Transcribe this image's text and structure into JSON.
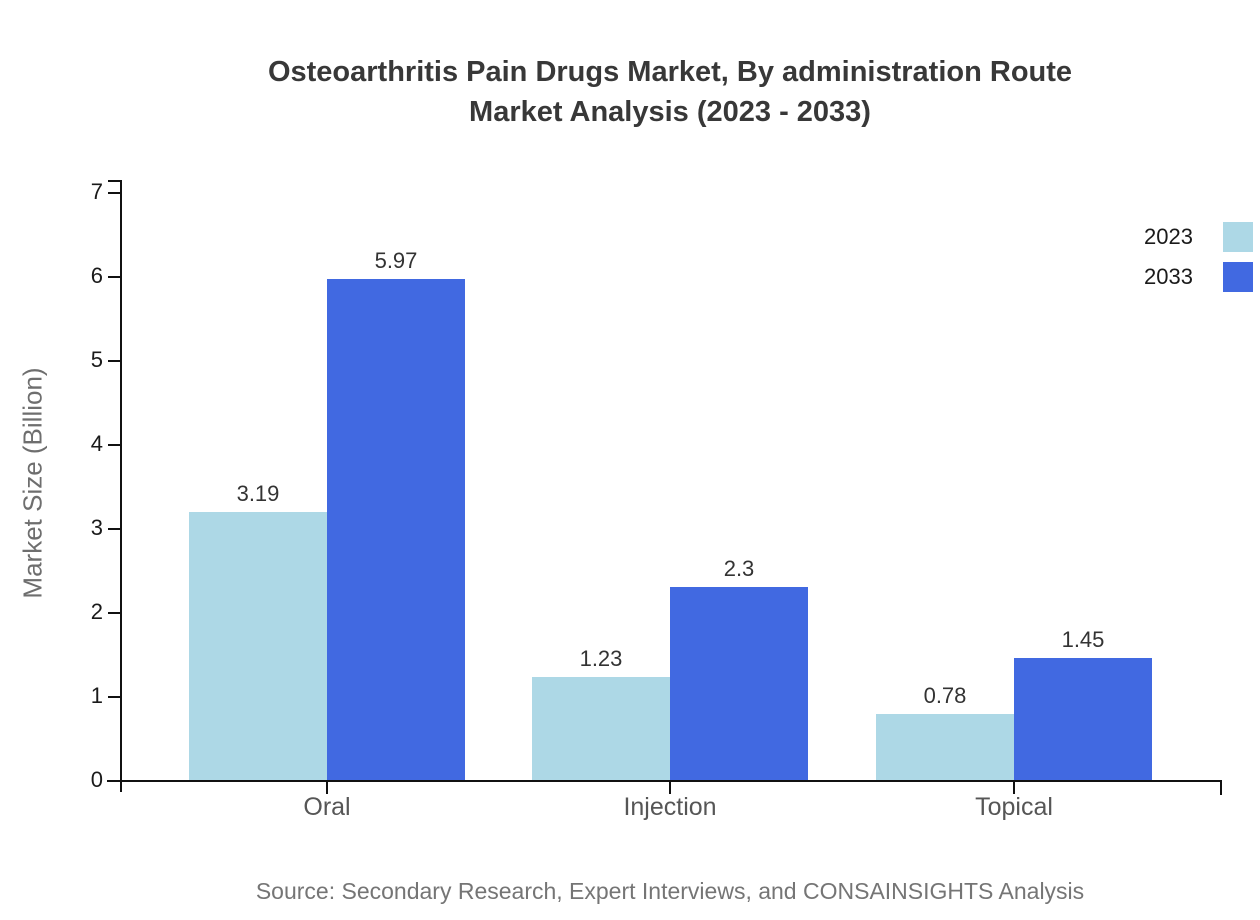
{
  "title": {
    "line1": "Osteoarthritis Pain Drugs Market, By administration Route",
    "line2": "Market Analysis (2023 - 2033)"
  },
  "source": {
    "text": "Source: Secondary Research, Expert Interviews, and CONSAINSIGHTS Analysis"
  },
  "chart_data": {
    "type": "bar",
    "title": "Osteoarthritis Pain Drugs Market, By administration Route Market Analysis (2023 - 2033)",
    "categories": [
      "Oral",
      "Injection",
      "Topical"
    ],
    "series": [
      {
        "name": "2023",
        "color": "#ADD8E6",
        "values": [
          3.19,
          1.23,
          0.78
        ],
        "labels": [
          "3.19",
          "1.23",
          "0.78"
        ]
      },
      {
        "name": "2033",
        "color": "#4169E1",
        "values": [
          5.97,
          2.3,
          1.45
        ],
        "labels": [
          "5.97",
          "2.3",
          "1.45"
        ]
      }
    ],
    "xlabel": "",
    "ylabel": "Market Size (Billion)",
    "ylim": [
      0,
      7
    ],
    "yticks": [
      0,
      1,
      2,
      3,
      4,
      5,
      6,
      7
    ],
    "grid": false,
    "legend_position": "top-right",
    "value_labels_shown": true
  }
}
